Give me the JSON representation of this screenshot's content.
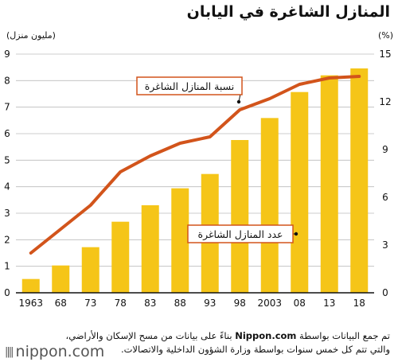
{
  "header": {
    "title": "المنازل الشاغرة في اليابان",
    "left_unit": "(مليون منزل)",
    "right_unit": "(%)"
  },
  "chart_data": {
    "type": "bar",
    "categories": [
      "1963",
      "68",
      "73",
      "78",
      "83",
      "88",
      "93",
      "98",
      "2003",
      "08",
      "13",
      "18"
    ],
    "series": [
      {
        "name": "عدد المنازل الشاغرة",
        "kind": "bar",
        "axis": "left",
        "values": [
          0.52,
          1.03,
          1.72,
          2.68,
          3.3,
          3.94,
          4.48,
          5.76,
          6.59,
          7.57,
          8.2,
          8.46
        ]
      },
      {
        "name": "نسبة المنازل الشاغرة",
        "kind": "line",
        "axis": "right",
        "values": [
          2.5,
          4.0,
          5.5,
          7.6,
          8.6,
          9.4,
          9.8,
          11.5,
          12.2,
          13.1,
          13.5,
          13.6
        ]
      }
    ],
    "left_axis": {
      "ticks": [
        "0",
        "1",
        "2",
        "3",
        "4",
        "5",
        "6",
        "7",
        "8",
        "9"
      ],
      "range": [
        0,
        9
      ]
    },
    "right_axis": {
      "ticks": [
        "0",
        "3",
        "6",
        "9",
        "12",
        "15"
      ],
      "range": [
        0,
        15
      ]
    },
    "grid": true,
    "colors": {
      "bar": "#f5c518",
      "line": "#d2541b",
      "grid": "#bbbbbb",
      "axis": "#111111"
    }
  },
  "footer": {
    "source_line1_pre": "تم جمع البيانات بواسطة ",
    "source_brand": "Nippon.com",
    "source_line1_post": " بناءً على بيانات من مسح الإسكان والأراضي،",
    "source_line2": "والتي تتم كل خمس سنوات بواسطة وزارة الشؤون الداخلية والاتصالات.",
    "logo_text": "nippon.com",
    "logo_mark": "||||"
  }
}
